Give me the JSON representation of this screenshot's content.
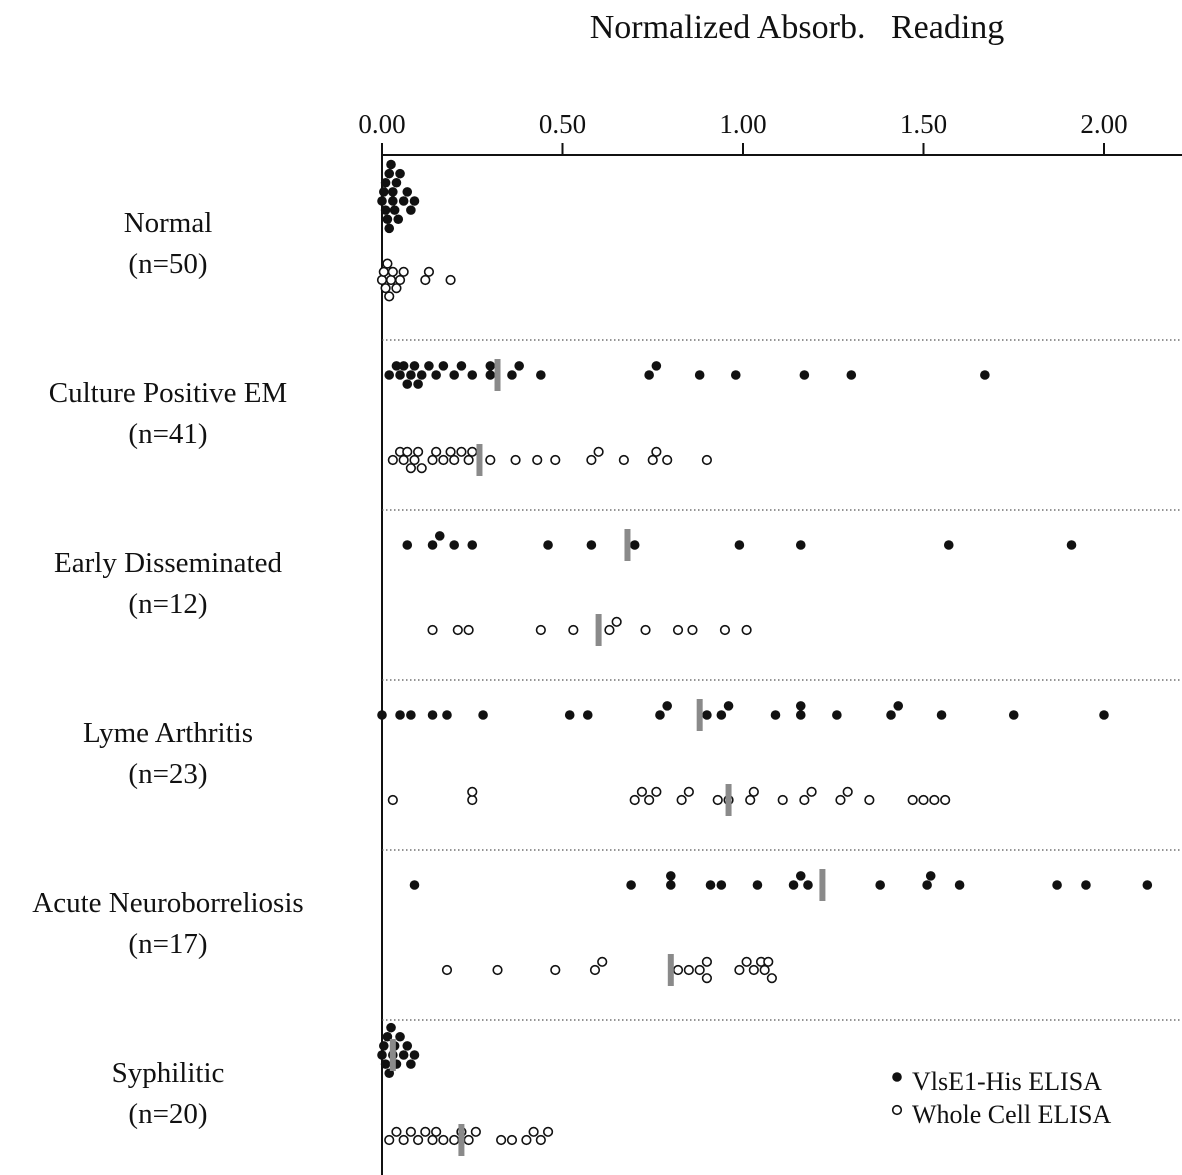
{
  "chart_data": {
    "type": "scatter",
    "title": "Normalized Absorb.   Reading",
    "xlabel": "",
    "ylabel": "",
    "xlim": [
      0,
      2.2
    ],
    "x_ticks": [
      "0.00",
      "0.50",
      "1.00",
      "1.50",
      "2.00"
    ],
    "x_tick_values": [
      0,
      0.5,
      1.0,
      1.5,
      2.0
    ],
    "legend_position": "bottom-right",
    "legend": [
      {
        "marker": "filled-circle",
        "label": "VlsE1-His ELISA"
      },
      {
        "marker": "open-circle",
        "label": "Whole Cell ELISA"
      }
    ],
    "groups": [
      {
        "name": "Normal",
        "n": "(n=50)",
        "vlse1": {
          "values": [
            0.0,
            0.005,
            0.01,
            0.01,
            0.015,
            0.02,
            0.02,
            0.025,
            0.03,
            0.03,
            0.035,
            0.04,
            0.045,
            0.05,
            0.06,
            0.07,
            0.08,
            0.09
          ],
          "median": null
        },
        "whole_cell": {
          "values": [
            0.0,
            0.005,
            0.01,
            0.015,
            0.02,
            0.025,
            0.03,
            0.04,
            0.05,
            0.06,
            0.12,
            0.13,
            0.19
          ],
          "median": null
        }
      },
      {
        "name": "Culture Positive EM",
        "n": "(n=41)",
        "vlse1": {
          "values": [
            0.02,
            0.04,
            0.05,
            0.06,
            0.07,
            0.08,
            0.09,
            0.1,
            0.11,
            0.13,
            0.15,
            0.17,
            0.2,
            0.22,
            0.25,
            0.3,
            0.3,
            0.36,
            0.38,
            0.44,
            0.74,
            0.76,
            0.88,
            0.98,
            1.17,
            1.3,
            1.67
          ],
          "median": 0.32
        },
        "whole_cell": {
          "values": [
            0.03,
            0.05,
            0.06,
            0.07,
            0.08,
            0.09,
            0.1,
            0.11,
            0.14,
            0.15,
            0.17,
            0.19,
            0.2,
            0.22,
            0.24,
            0.25,
            0.3,
            0.37,
            0.43,
            0.48,
            0.58,
            0.6,
            0.67,
            0.75,
            0.76,
            0.79,
            0.9
          ],
          "median": 0.27
        }
      },
      {
        "name": "Early Disseminated",
        "n": "(n=12)",
        "vlse1": {
          "values": [
            0.07,
            0.14,
            0.16,
            0.2,
            0.25,
            0.46,
            0.58,
            0.7,
            0.99,
            1.16,
            1.57,
            1.91
          ],
          "median": 0.68
        },
        "whole_cell": {
          "values": [
            0.14,
            0.21,
            0.24,
            0.44,
            0.53,
            0.63,
            0.65,
            0.73,
            0.82,
            0.86,
            0.95,
            1.01
          ],
          "median": 0.6
        }
      },
      {
        "name": "Lyme Arthritis",
        "n": "(n=23)",
        "vlse1": {
          "values": [
            0.0,
            0.05,
            0.08,
            0.14,
            0.18,
            0.28,
            0.52,
            0.57,
            0.77,
            0.79,
            0.9,
            0.94,
            0.96,
            1.09,
            1.16,
            1.16,
            1.26,
            1.41,
            1.43,
            1.55,
            1.75,
            2.0
          ],
          "median": 0.88
        },
        "whole_cell": {
          "values": [
            0.03,
            0.25,
            0.25,
            0.7,
            0.72,
            0.74,
            0.76,
            0.83,
            0.85,
            0.93,
            0.96,
            1.02,
            1.03,
            1.11,
            1.17,
            1.19,
            1.27,
            1.29,
            1.35,
            1.47,
            1.5,
            1.53,
            1.56
          ],
          "median": 0.96
        }
      },
      {
        "name": "Acute Neuroborreliosis",
        "n": "(n=17)",
        "vlse1": {
          "values": [
            0.09,
            0.69,
            0.8,
            0.8,
            0.91,
            0.94,
            1.04,
            1.14,
            1.16,
            1.18,
            1.38,
            1.51,
            1.52,
            1.6,
            1.87,
            1.95,
            2.12
          ],
          "median": 1.22
        },
        "whole_cell": {
          "values": [
            0.18,
            0.32,
            0.48,
            0.59,
            0.61,
            0.82,
            0.85,
            0.88,
            0.9,
            0.9,
            0.99,
            1.01,
            1.03,
            1.05,
            1.06,
            1.07,
            1.08
          ],
          "median": 0.8
        }
      },
      {
        "name": "Syphilitic",
        "n": "(n=20)",
        "vlse1": {
          "values": [
            0.0,
            0.005,
            0.01,
            0.015,
            0.02,
            0.025,
            0.03,
            0.035,
            0.04,
            0.05,
            0.06,
            0.07,
            0.08,
            0.09
          ],
          "median": 0.03
        },
        "whole_cell": {
          "values": [
            0.02,
            0.04,
            0.06,
            0.08,
            0.1,
            0.12,
            0.14,
            0.15,
            0.17,
            0.2,
            0.22,
            0.24,
            0.26,
            0.33,
            0.36,
            0.4,
            0.42,
            0.44,
            0.46
          ],
          "median": 0.22
        }
      }
    ]
  }
}
